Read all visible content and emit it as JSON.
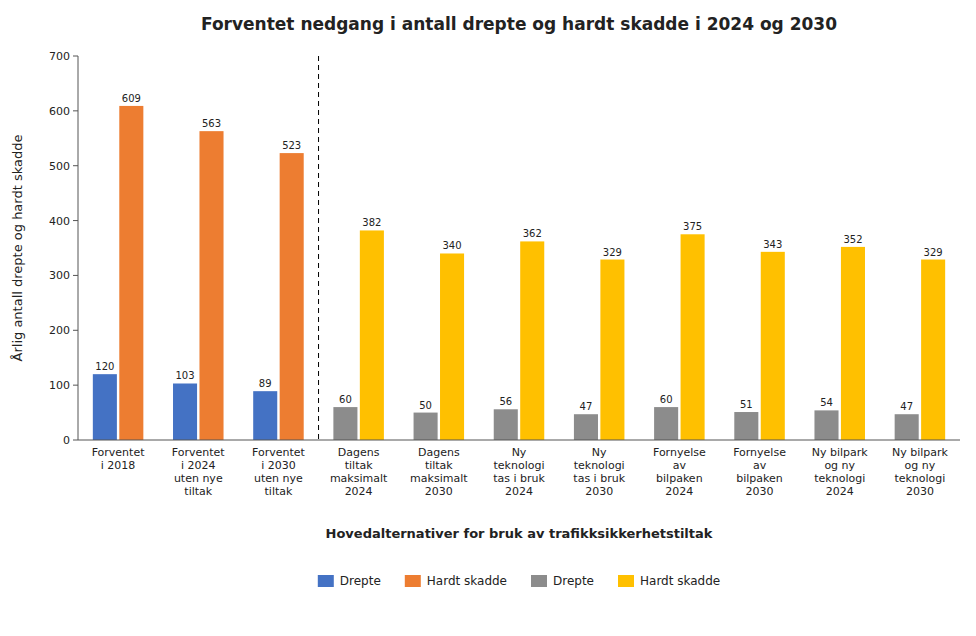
{
  "chart_data": {
    "type": "bar",
    "title": "Forventet nedgang i antall drepte og hardt skadde i 2024 og 2030",
    "ylabel": "Årlig antall drepte og hardt skadde",
    "xlabel": "Hovedalternativer  for bruk av trafikksikkerhetstiltak",
    "categories": [
      "Forventet\ni 2018",
      "Forventet\ni 2024\nuten nye\ntiltak",
      "Forventet\ni 2030\nuten nye\ntiltak",
      "Dagens\ntiltak\nmaksimalt\n2024",
      "Dagens\ntiltak\nmaksimalt\n2030",
      "Ny\nteknologi\ntas i bruk\n2024",
      "Ny\nteknologi\ntas i bruk\n2030",
      "Fornyelse\nav\nbilpaken\n2024",
      "Fornyelse\nav\nbilpaken\n2030",
      "Ny bilpark\nog ny\nteknologi\n2024",
      "Ny bilpark\nog ny\nteknologi\n2030"
    ],
    "series": [
      {
        "name": "Drepte",
        "color": "#4472C4",
        "values": [
          120,
          103,
          89,
          null,
          null,
          null,
          null,
          null,
          null,
          null,
          null
        ]
      },
      {
        "name": "Hardt skadde",
        "color": "#ED7D31",
        "values": [
          609,
          563,
          523,
          null,
          null,
          null,
          null,
          null,
          null,
          null,
          null
        ]
      },
      {
        "name": "Drepte",
        "color": "#8c8c8c",
        "values": [
          null,
          null,
          null,
          60,
          50,
          56,
          47,
          60,
          51,
          54,
          47
        ]
      },
      {
        "name": "Hardt skadde",
        "color": "#FFC000",
        "values": [
          null,
          null,
          null,
          382,
          340,
          362,
          329,
          375,
          343,
          352,
          329
        ]
      }
    ],
    "ylim": [
      0,
      700
    ],
    "yticks": [
      0,
      100,
      200,
      300,
      400,
      500,
      600,
      700
    ],
    "data_labels": true,
    "grid": false,
    "legend": "bottom"
  }
}
